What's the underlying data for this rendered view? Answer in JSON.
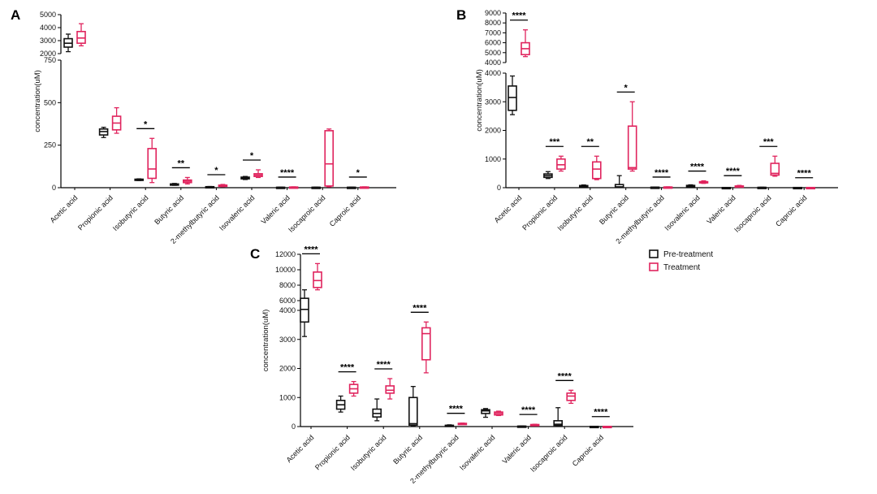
{
  "chart_data": [
    {
      "type": "box",
      "panel_label": "A",
      "ylabel": "concentration(uM)",
      "y_axis_segments": [
        {
          "range": [
            2000,
            5000
          ],
          "ticks": [
            "2000",
            "3000",
            "4000",
            "5000"
          ],
          "tick_values": [
            2000,
            3000,
            4000,
            5000
          ]
        },
        {
          "range": [
            0,
            750
          ],
          "ticks": [
            "0",
            "250",
            "500",
            "750"
          ],
          "tick_values": [
            0,
            250,
            500,
            750
          ]
        }
      ],
      "categories": [
        "Acetic acid",
        "Propionic acid",
        "Isobutyric acid",
        "Butyric acid",
        "2-methylbutyric acid",
        "Isovaleric acid",
        "Valeric acid",
        "Isocaproic acid",
        "Caproic acid"
      ],
      "significance": [
        "",
        "",
        "*",
        "**",
        "*",
        "*",
        "****",
        "",
        "*"
      ],
      "series": [
        {
          "name": "Pre-treatment",
          "color": "#111111",
          "boxes": [
            [
              2150,
              2500,
              2800,
              3150,
              3500
            ],
            [
              295,
              310,
              330,
              345,
              355
            ],
            [
              42,
              44,
              47,
              50,
              52
            ],
            [
              14,
              16,
              19,
              22,
              25
            ],
            [
              3,
              4,
              5,
              6,
              7
            ],
            [
              48,
              52,
              57,
              62,
              66
            ],
            [
              1,
              1.5,
              2,
              2.5,
              3
            ],
            [
              1,
              1.5,
              2,
              2.5,
              3
            ],
            [
              1,
              1.5,
              2,
              2.5,
              3
            ]
          ]
        },
        {
          "name": "Treatment",
          "color": "#e0245e",
          "boxes": [
            [
              2600,
              2800,
              3200,
              3700,
              4300
            ],
            [
              320,
              340,
              380,
              420,
              470
            ],
            [
              30,
              55,
              110,
              230,
              290
            ],
            [
              22,
              30,
              38,
              45,
              60
            ],
            [
              6,
              9,
              12,
              15,
              19
            ],
            [
              60,
              66,
              74,
              82,
              105
            ],
            [
              1.5,
              2,
              3,
              4,
              5
            ],
            [
              5,
              10,
              140,
              335,
              345
            ],
            [
              1.5,
              2,
              3,
              4,
              5
            ]
          ]
        }
      ]
    },
    {
      "type": "box",
      "panel_label": "B",
      "ylabel": "concentration(uM)",
      "y_axis_segments": [
        {
          "range": [
            4000,
            9000
          ],
          "ticks": [
            "4000",
            "5000",
            "6000",
            "7000",
            "8000",
            "9000"
          ],
          "tick_values": [
            4000,
            5000,
            6000,
            7000,
            8000,
            9000
          ]
        },
        {
          "range": [
            0,
            4000
          ],
          "ticks": [
            "0",
            "1000",
            "2000",
            "3000",
            "4000"
          ],
          "tick_values": [
            0,
            1000,
            2000,
            3000,
            4000
          ]
        }
      ],
      "categories": [
        "Acetic acid",
        "Propionic acid",
        "Isobutyric acid",
        "Butyric acid",
        "2-methylbutyric acid",
        "Isovaleric acid",
        "Valeric acid",
        "Isocaproic acid",
        "Caproic acid"
      ],
      "significance": [
        "****",
        "***",
        "**",
        "*",
        "****",
        "****",
        "****",
        "***",
        "****"
      ],
      "series": [
        {
          "name": "Pre-treatment",
          "color": "#111111",
          "boxes": [
            [
              2550,
              2700,
              3150,
              3550,
              3900
            ],
            [
              320,
              360,
              420,
              480,
              560
            ],
            [
              30,
              45,
              60,
              75,
              95
            ],
            [
              5,
              10,
              30,
              110,
              420
            ],
            [
              8,
              12,
              15,
              18,
              22
            ],
            [
              40,
              55,
              68,
              80,
              100
            ],
            [
              3,
              4,
              5,
              6,
              8
            ],
            [
              5,
              7,
              10,
              12,
              15
            ],
            [
              4,
              5,
              6,
              7,
              8
            ]
          ]
        },
        {
          "name": "Treatment",
          "color": "#e0245e",
          "boxes": [
            [
              4600,
              4800,
              5400,
              6000,
              7300
            ],
            [
              580,
              650,
              800,
              1000,
              1100
            ],
            [
              280,
              320,
              650,
              900,
              1100
            ],
            [
              580,
              650,
              700,
              2150,
              3000
            ],
            [
              12,
              16,
              20,
              25,
              30
            ],
            [
              150,
              170,
              190,
              210,
              240
            ],
            [
              20,
              30,
              45,
              60,
              80
            ],
            [
              400,
              440,
              500,
              850,
              1100
            ],
            [
              4,
              5,
              6,
              7,
              8
            ]
          ]
        }
      ]
    },
    {
      "type": "box",
      "panel_label": "C",
      "ylabel": "concentration(uM)",
      "y_axis_segments": [
        {
          "range": [
            6000,
            12000
          ],
          "ticks": [
            "6000",
            "8000",
            "10000",
            "12000"
          ],
          "tick_values": [
            6000,
            8000,
            10000,
            12000
          ]
        },
        {
          "range": [
            0,
            4000
          ],
          "ticks": [
            "0",
            "1000",
            "2000",
            "3000",
            "4000"
          ],
          "tick_values": [
            0,
            1000,
            2000,
            3000,
            4000
          ]
        }
      ],
      "categories": [
        "Acetic acid",
        "Propionic acid",
        "Isobutyric acid",
        "Butyric acid",
        "2-methylbutyric acid",
        "Isovaleric acid",
        "Valeric acid",
        "Isocaproic acid",
        "Caproic acid"
      ],
      "significance": [
        "****",
        "****",
        "****",
        "****",
        "****",
        "",
        "****",
        "****",
        "****"
      ],
      "series": [
        {
          "name": "Pre-treatment",
          "color": "#111111",
          "boxes": [
            [
              3100,
              3600,
              4200,
              6300,
              7400
            ],
            [
              500,
              600,
              750,
              900,
              1050
            ],
            [
              200,
              330,
              450,
              600,
              950
            ],
            [
              20,
              50,
              100,
              1000,
              1380
            ],
            [
              10,
              20,
              30,
              45,
              60
            ],
            [
              320,
              450,
              540,
              580,
              620
            ],
            [
              5,
              8,
              12,
              16,
              20
            ],
            [
              10,
              40,
              80,
              200,
              650
            ],
            [
              3,
              4,
              5,
              6,
              8
            ]
          ]
        },
        {
          "name": "Treatment",
          "color": "#e0245e",
          "boxes": [
            [
              7400,
              7700,
              8600,
              9700,
              10800
            ],
            [
              1050,
              1150,
              1300,
              1450,
              1550
            ],
            [
              950,
              1150,
              1250,
              1400,
              1650
            ],
            [
              1850,
              2300,
              3200,
              3400,
              3600
            ],
            [
              80,
              90,
              100,
              110,
              120
            ],
            [
              380,
              400,
              450,
              500,
              530
            ],
            [
              40,
              50,
              60,
              70,
              80
            ],
            [
              800,
              900,
              1050,
              1150,
              1250
            ],
            [
              3,
              4,
              5,
              6,
              8
            ]
          ]
        }
      ]
    }
  ],
  "legend": {
    "items": [
      {
        "label": "Pre-treatment",
        "color": "#111111"
      },
      {
        "label": "Treatment",
        "color": "#e0245e"
      }
    ]
  }
}
